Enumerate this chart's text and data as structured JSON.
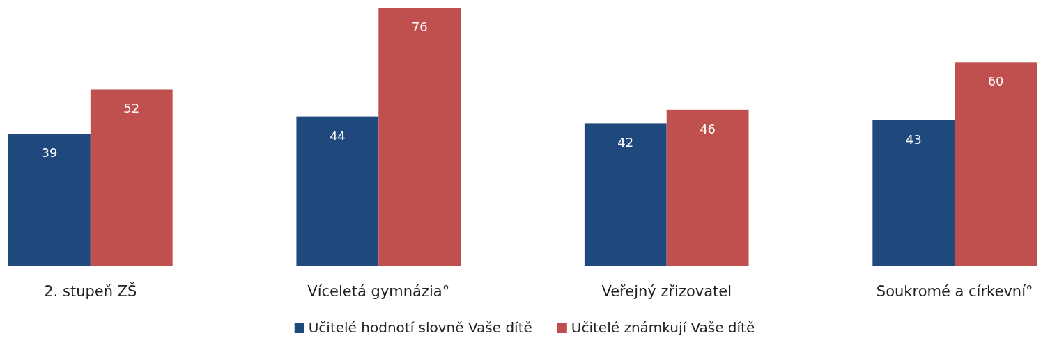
{
  "chart_data": {
    "type": "bar",
    "categories": [
      "2. stupeň ZŠ",
      "Víceletá gymnázia°",
      "Veřejný zřizovatel",
      "Soukromé a církevní°"
    ],
    "series": [
      {
        "name": "Učitelé hodnotí slovně Vaše dítě",
        "color": "#1f497d",
        "values": [
          39,
          44,
          42,
          43
        ]
      },
      {
        "name": "Učitelé známkují Vaše dítě",
        "color": "#c0504d",
        "values": [
          52,
          76,
          46,
          60
        ]
      }
    ],
    "data_labels": true,
    "legend": "bottom"
  }
}
